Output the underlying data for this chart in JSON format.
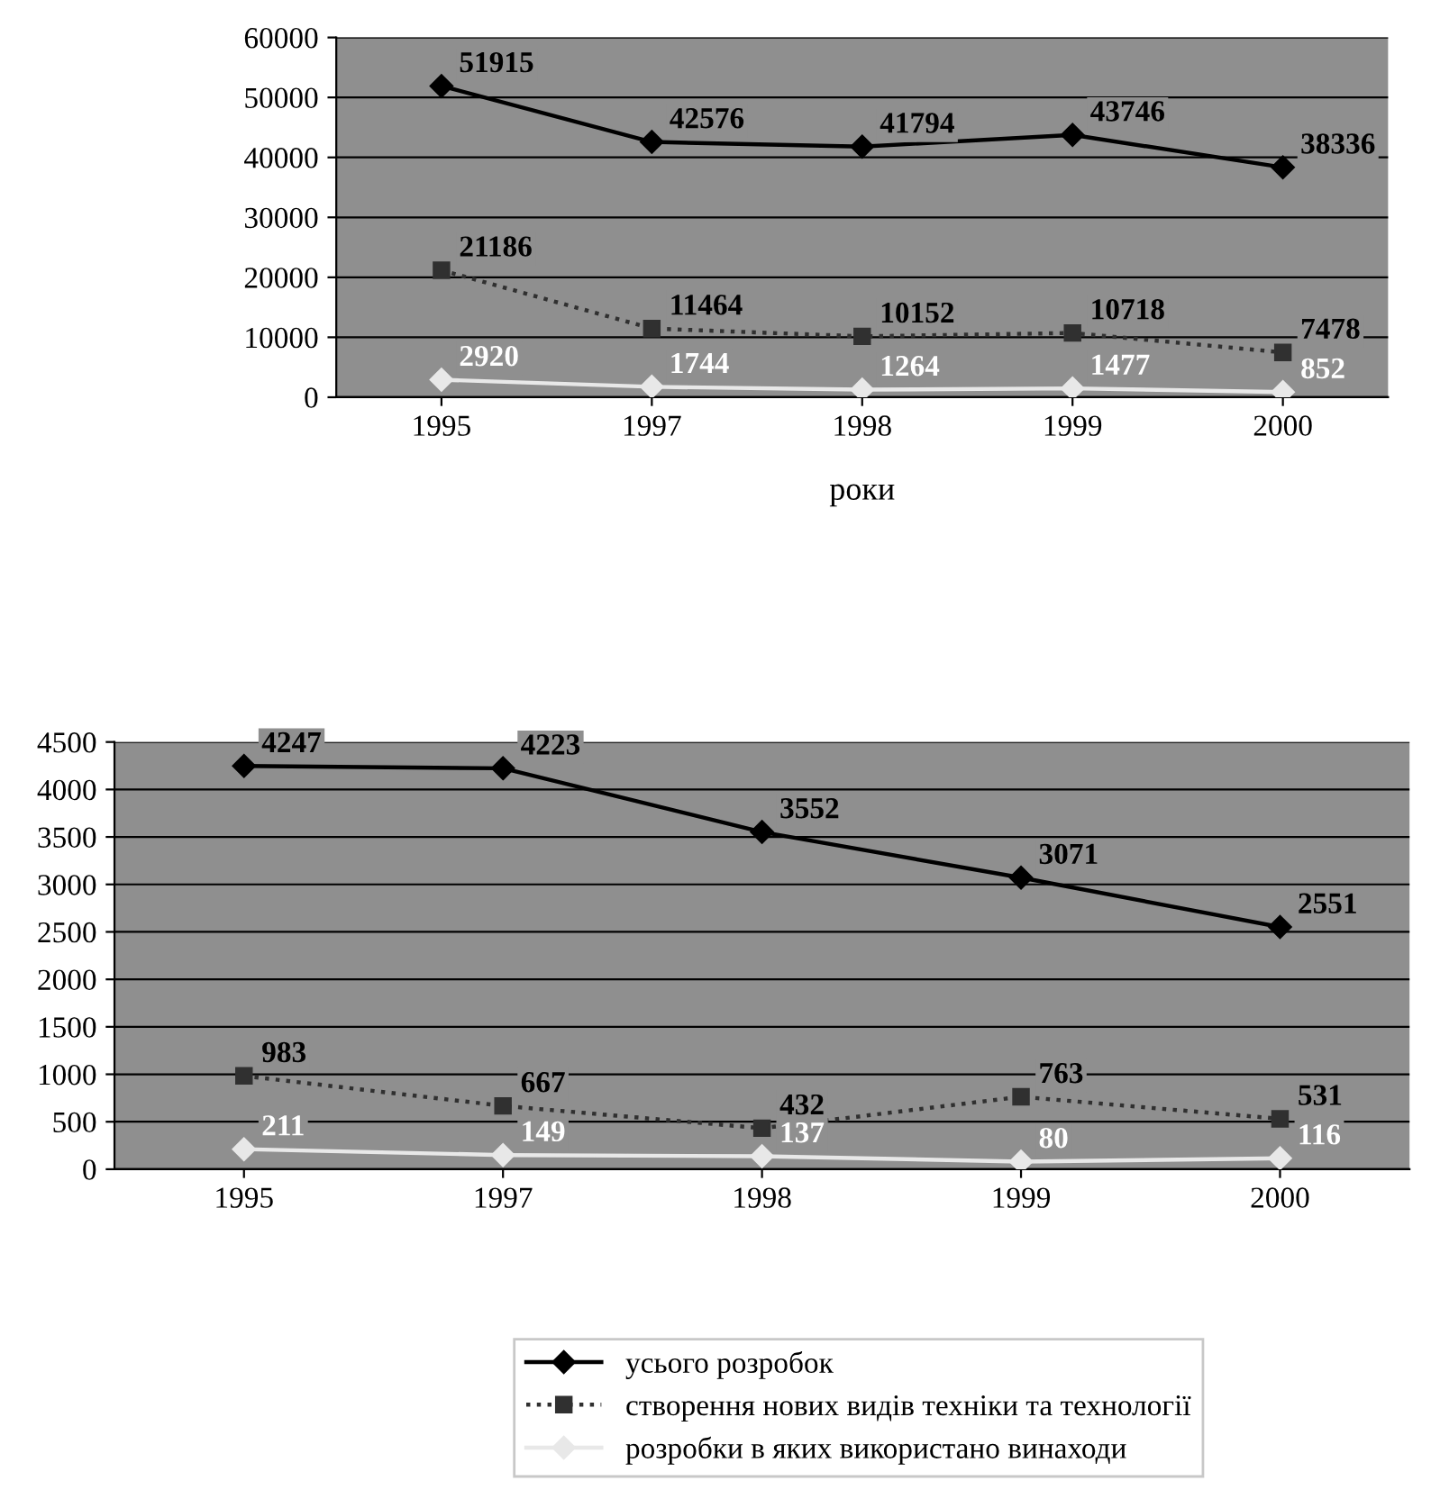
{
  "chart_data": [
    {
      "type": "line",
      "categories": [
        "1995",
        "1997",
        "1998",
        "1999",
        "2000"
      ],
      "xlabel": "роки",
      "ylim": [
        0,
        60000
      ],
      "yticks": [
        0,
        10000,
        20000,
        30000,
        40000,
        50000,
        60000
      ],
      "grid": "y",
      "data_labels": true,
      "series": [
        {
          "color": "#000000",
          "marker": "diamond",
          "line_style": "solid",
          "values": [
            51915,
            42576,
            41794,
            43746,
            38336
          ]
        },
        {
          "color": "#303030",
          "marker": "square",
          "line_style": "dotted",
          "values": [
            21186,
            11464,
            10152,
            10718,
            7478
          ]
        },
        {
          "color": "#e8e8e8",
          "marker": "diamond",
          "line_style": "solid",
          "values": [
            2920,
            1744,
            1264,
            1477,
            852
          ]
        }
      ]
    },
    {
      "type": "line",
      "categories": [
        "1995",
        "1997",
        "1998",
        "1999",
        "2000"
      ],
      "ylim": [
        0,
        4500
      ],
      "yticks": [
        0,
        500,
        1000,
        1500,
        2000,
        2500,
        3000,
        3500,
        4000,
        4500
      ],
      "grid": "y",
      "legend": "bottom",
      "data_labels": true,
      "series": [
        {
          "name": "усього розробок",
          "color": "#000000",
          "marker": "diamond",
          "line_style": "solid",
          "values": [
            4247,
            4223,
            3552,
            3071,
            2551
          ]
        },
        {
          "name": "створення нових видів техніки та технології",
          "color": "#303030",
          "marker": "square",
          "line_style": "dotted",
          "values": [
            983,
            667,
            432,
            763,
            531
          ]
        },
        {
          "name": "розробки в яких використано винаходи",
          "color": "#e8e8e8",
          "marker": "diamond",
          "line_style": "solid",
          "values": [
            211,
            149,
            137,
            80,
            116
          ]
        }
      ]
    }
  ]
}
